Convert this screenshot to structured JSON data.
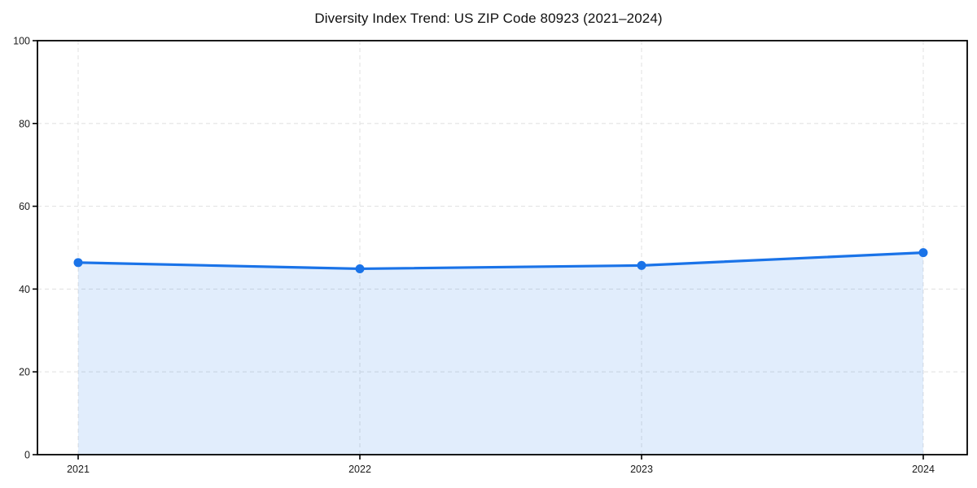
{
  "chart_data": {
    "type": "area",
    "title": "Diversity Index Trend: US ZIP Code 80923 (2021–2024)",
    "categories": [
      "2021",
      "2022",
      "2023",
      "2024"
    ],
    "values": [
      46.4,
      44.9,
      45.7,
      48.8
    ],
    "xlabel": "",
    "ylabel": "",
    "ylim": [
      0,
      100
    ],
    "yticks": [
      0,
      20,
      40,
      60,
      80,
      100
    ],
    "grid": true,
    "grid_style": "dashed",
    "legend": "none",
    "marker": "circle",
    "colors": {
      "line": "#1a73e8",
      "fill_rgba": "26,115,232,0.13",
      "grid": "#e3e3e3",
      "axis": "#000000",
      "tick_text": "#1a1a1a",
      "background": "#ffffff"
    }
  }
}
